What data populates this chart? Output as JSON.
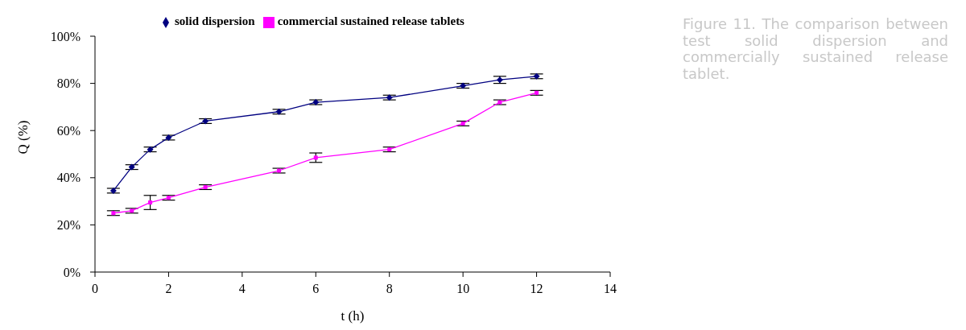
{
  "chart_data": {
    "type": "line",
    "xlabel": "t (h)",
    "ylabel": "Q (%)",
    "x": [
      0.5,
      1,
      1.5,
      2,
      3,
      5,
      6,
      8,
      10,
      11,
      12
    ],
    "series": [
      {
        "name": "solid dispersion",
        "color": "#000080",
        "marker": "diamond",
        "values": [
          34.5,
          44.5,
          52,
          57,
          64,
          68,
          72,
          74,
          79,
          81.5,
          83
        ],
        "errors": [
          1,
          1,
          1,
          1,
          1,
          1,
          1,
          1,
          1,
          1.5,
          1
        ]
      },
      {
        "name": "commercial sustained release tablets",
        "color": "#ff00ff",
        "marker": "square",
        "values": [
          25,
          26,
          29.5,
          31.5,
          36,
          43,
          48.5,
          52,
          63,
          72,
          76
        ],
        "errors": [
          1,
          1,
          3,
          1,
          1,
          1,
          2,
          1,
          1,
          1,
          1
        ]
      }
    ],
    "xlim": [
      0,
      14
    ],
    "xticks": [
      0,
      2,
      4,
      6,
      8,
      10,
      12,
      14
    ],
    "ylim": [
      0,
      100
    ],
    "yticks": [
      {
        "value": 0,
        "label": "0%"
      },
      {
        "value": 20,
        "label": "20%"
      },
      {
        "value": 40,
        "label": "40%"
      },
      {
        "value": 60,
        "label": "60%"
      },
      {
        "value": 80,
        "label": "80%"
      },
      {
        "value": 100,
        "label": "100%"
      }
    ],
    "legend": "top",
    "grid": false,
    "annotations": [
      "Figure 11. The comparison between test solid dispersion and commercially sustained release tablet."
    ]
  }
}
